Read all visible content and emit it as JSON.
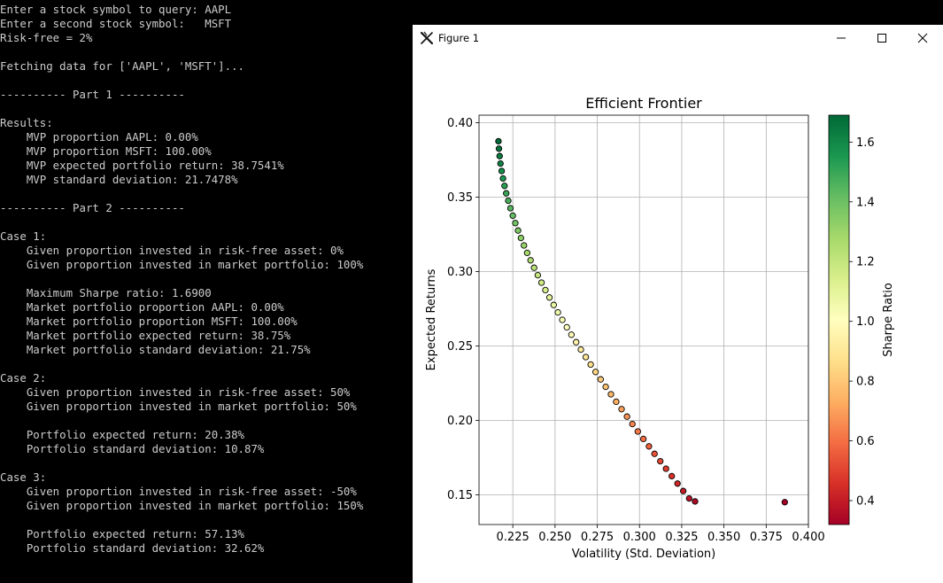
{
  "console": {
    "lines": [
      "Enter a stock symbol to query: AAPL",
      "Enter a second stock symbol:   MSFT",
      "Risk-free = 2%",
      "",
      "Fetching data for ['AAPL', 'MSFT']...",
      "",
      "---------- Part 1 ----------",
      "",
      "Results:",
      "    MVP proportion AAPL: 0.00%",
      "    MVP proportion MSFT: 100.00%",
      "    MVP expected portfolio return: 38.7541%",
      "    MVP standard deviation: 21.7478%",
      "",
      "---------- Part 2 ----------",
      "",
      "Case 1:",
      "    Given proportion invested in risk-free asset: 0%",
      "    Given proportion invested in market portfolio: 100%",
      "",
      "    Maximum Sharpe ratio: 1.6900",
      "    Market portfolio proportion AAPL: 0.00%",
      "    Market portfolio proportion MSFT: 100.00%",
      "    Market portfolio expected return: 38.75%",
      "    Market portfolio standard deviation: 21.75%",
      "",
      "Case 2:",
      "    Given proportion invested in risk-free asset: 50%",
      "    Given proportion invested in market portfolio: 50%",
      "",
      "    Portfolio expected return: 20.38%",
      "    Portfolio standard deviation: 10.87%",
      "",
      "Case 3:",
      "    Given proportion invested in risk-free asset: -50%",
      "    Given proportion invested in market portfolio: 150%",
      "",
      "    Portfolio expected return: 57.13%",
      "    Portfolio standard deviation: 32.62%"
    ]
  },
  "window": {
    "title": "Figure 1",
    "app_icon": "matplotlib-x-icon",
    "buttons": [
      "minimize-icon",
      "maximize-icon",
      "close-icon"
    ]
  },
  "chart_data": {
    "type": "scatter",
    "title": "Efficient Frontier",
    "xlabel": "Volatility (Std. Deviation)",
    "ylabel": "Expected Returns",
    "xlim": [
      0.205,
      0.4
    ],
    "ylim": [
      0.13,
      0.405
    ],
    "xticks": [
      "0.225",
      "0.250",
      "0.275",
      "0.300",
      "0.325",
      "0.350",
      "0.375",
      "0.400"
    ],
    "yticks": [
      "0.15",
      "0.20",
      "0.25",
      "0.30",
      "0.35",
      "0.40"
    ],
    "grid": true,
    "colorbar": {
      "label": "Sharpe Ratio",
      "range": [
        0.32,
        1.69
      ],
      "ticks": [
        "0.4",
        "0.6",
        "0.8",
        "1.0",
        "1.2",
        "1.4",
        "1.6"
      ],
      "colormap": "RdYlGn"
    },
    "series": [
      {
        "points": [
          [
            0.2165,
            0.3875
          ],
          [
            0.2168,
            0.3825
          ],
          [
            0.2172,
            0.3775
          ],
          [
            0.2177,
            0.3725
          ],
          [
            0.2184,
            0.3675
          ],
          [
            0.2192,
            0.3625
          ],
          [
            0.2201,
            0.3575
          ],
          [
            0.2211,
            0.3525
          ],
          [
            0.2223,
            0.3475
          ],
          [
            0.2236,
            0.3425
          ],
          [
            0.225,
            0.3375
          ],
          [
            0.2265,
            0.3325
          ],
          [
            0.2281,
            0.3275
          ],
          [
            0.2298,
            0.3225
          ],
          [
            0.2316,
            0.3175
          ],
          [
            0.2335,
            0.3125
          ],
          [
            0.2355,
            0.3075
          ],
          [
            0.2376,
            0.3025
          ],
          [
            0.2398,
            0.2975
          ],
          [
            0.242,
            0.2925
          ],
          [
            0.2443,
            0.2875
          ],
          [
            0.2467,
            0.2825
          ],
          [
            0.2492,
            0.2775
          ],
          [
            0.2517,
            0.2725
          ],
          [
            0.2543,
            0.2675
          ],
          [
            0.257,
            0.2625
          ],
          [
            0.2597,
            0.2575
          ],
          [
            0.2625,
            0.2525
          ],
          [
            0.2653,
            0.2475
          ],
          [
            0.2682,
            0.2425
          ],
          [
            0.2711,
            0.2375
          ],
          [
            0.274,
            0.2325
          ],
          [
            0.277,
            0.2275
          ],
          [
            0.28,
            0.2225
          ],
          [
            0.2831,
            0.2175
          ],
          [
            0.2862,
            0.2125
          ],
          [
            0.2894,
            0.2075
          ],
          [
            0.2926,
            0.2025
          ],
          [
            0.2958,
            0.1975
          ],
          [
            0.299,
            0.1925
          ],
          [
            0.3023,
            0.1875
          ],
          [
            0.3056,
            0.1825
          ],
          [
            0.3089,
            0.1775
          ],
          [
            0.3123,
            0.1725
          ],
          [
            0.3157,
            0.1675
          ],
          [
            0.3191,
            0.1625
          ],
          [
            0.3225,
            0.1575
          ],
          [
            0.3259,
            0.1525
          ],
          [
            0.3294,
            0.1475
          ],
          [
            0.3329,
            0.1455
          ],
          [
            0.386,
            0.145
          ]
        ]
      }
    ]
  }
}
